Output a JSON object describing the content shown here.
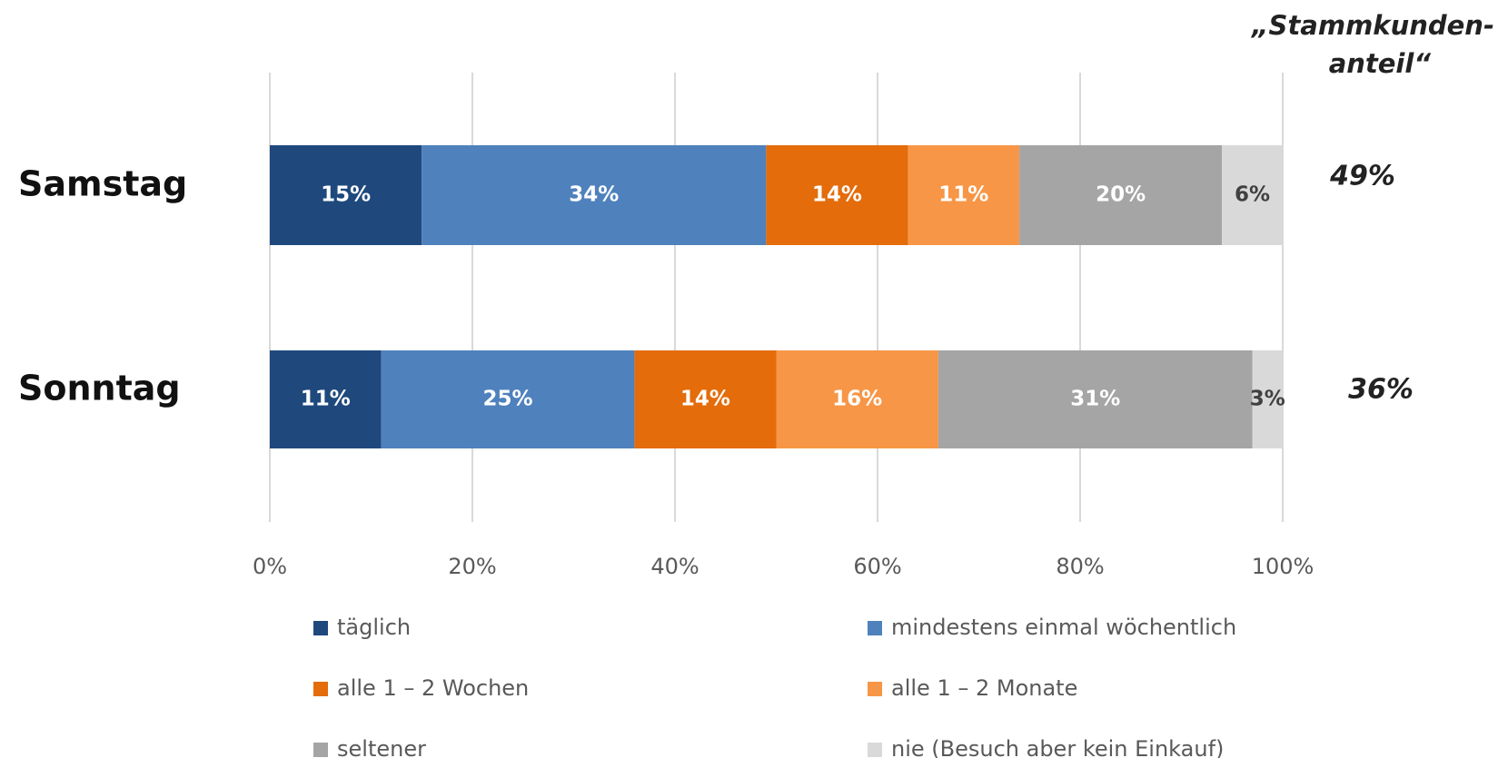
{
  "chart_data": {
    "type": "stacked-bar-horizontal",
    "categories": [
      "Samstag",
      "Sonntag"
    ],
    "series": [
      {
        "name": "täglich",
        "color": "#1f497d",
        "label_color": "#ffffff",
        "values": [
          15,
          11
        ],
        "value_labels": [
          "15%",
          "11%"
        ]
      },
      {
        "name": "mindestens einmal wöchentlich",
        "color": "#4f81bd",
        "label_color": "#ffffff",
        "values": [
          34,
          25
        ],
        "value_labels": [
          "34%",
          "25%"
        ]
      },
      {
        "name": "alle 1 – 2 Wochen",
        "color": "#e46c0a",
        "label_color": "#ffffff",
        "values": [
          14,
          14
        ],
        "value_labels": [
          "14%",
          "14%"
        ]
      },
      {
        "name": "alle 1 – 2 Monate",
        "color": "#f79646",
        "label_color": "#ffffff",
        "values": [
          11,
          16
        ],
        "value_labels": [
          "11%",
          "16%"
        ]
      },
      {
        "name": "seltener",
        "color": "#a5a5a5",
        "label_color": "#ffffff",
        "values": [
          20,
          31
        ],
        "value_labels": [
          "20%",
          "31%"
        ]
      },
      {
        "name": "nie (Besuch aber kein Einkauf)",
        "color": "#d9d9d9",
        "label_color": "#404040",
        "values": [
          6,
          3
        ],
        "value_labels": [
          "6%",
          "3%"
        ]
      }
    ],
    "xlim": [
      0,
      100
    ],
    "xticks": [
      {
        "value": 0,
        "label": "0%"
      },
      {
        "value": 20,
        "label": "20%"
      },
      {
        "value": 40,
        "label": "40%"
      },
      {
        "value": 60,
        "label": "60%"
      },
      {
        "value": 80,
        "label": "80%"
      },
      {
        "value": 100,
        "label": "100%"
      }
    ],
    "grid": true,
    "side_header": [
      "„Stammkunden-",
      "anteil“"
    ],
    "side_labels": [
      "49%",
      "36%"
    ]
  }
}
